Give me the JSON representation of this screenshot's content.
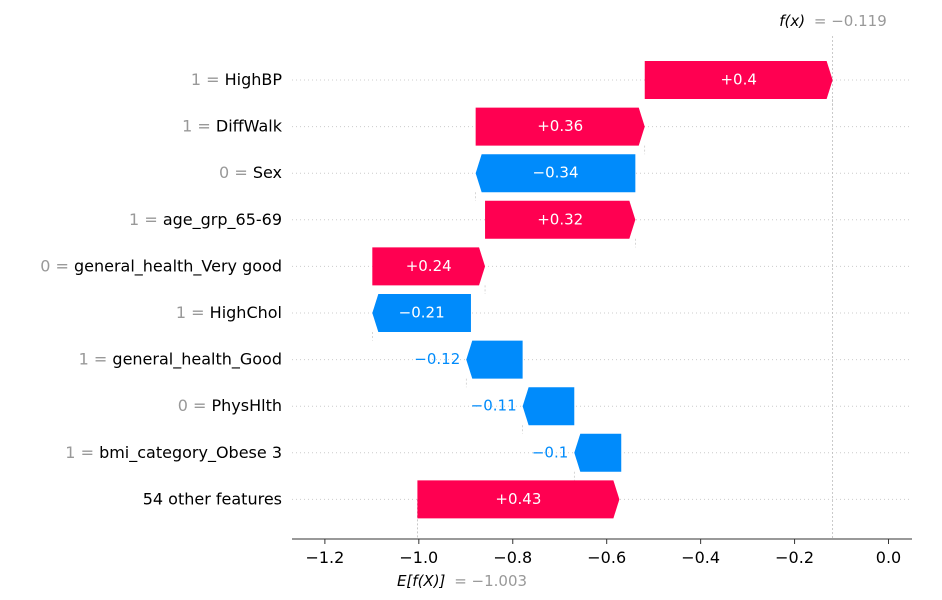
{
  "chart_data": {
    "type": "waterfall",
    "xlim": [
      -1.27,
      0.05
    ],
    "xticks": [
      -1.2,
      -1.0,
      -0.8,
      -0.6,
      -0.4,
      -0.2,
      0.0
    ],
    "xtick_labels": [
      "−1.2",
      "−1.0",
      "−0.8",
      "−0.6",
      "−0.4",
      "−0.2",
      "0.0"
    ],
    "base_value": -1.003,
    "base_label_prefix": "E[f(X)]",
    "base_label_value": "= −1.003",
    "output_value": -0.119,
    "output_label_prefix": "f(x)",
    "output_label_value": "= −0.119",
    "colors": {
      "positive": "#ff0051",
      "negative": "#008bfb",
      "value_text": "#999999"
    },
    "features": [
      {
        "value": "1 =",
        "name": "HighBP",
        "shap": 0.4,
        "label": "+0.4",
        "start": -0.519
      },
      {
        "value": "1 =",
        "name": "DiffWalk",
        "shap": 0.36,
        "label": "+0.36",
        "start": -0.879
      },
      {
        "value": "0 =",
        "name": "Sex",
        "shap": -0.34,
        "label": "−0.34",
        "start": -0.539
      },
      {
        "value": "1 =",
        "name": "age_grp_65-69",
        "shap": 0.32,
        "label": "+0.32",
        "start": -0.859
      },
      {
        "value": "0 =",
        "name": "general_health_Very good",
        "shap": 0.24,
        "label": "+0.24",
        "start": -1.099
      },
      {
        "value": "1 =",
        "name": "HighChol",
        "shap": -0.21,
        "label": "−0.21",
        "start": -0.889
      },
      {
        "value": "1 =",
        "name": "general_health_Good",
        "shap": -0.12,
        "label": "−0.12",
        "start": -0.779
      },
      {
        "value": "0 =",
        "name": "PhysHlth",
        "shap": -0.11,
        "label": "−0.11",
        "start": -0.669
      },
      {
        "value": "1 =",
        "name": "bmi_category_Obese 3",
        "shap": -0.1,
        "label": "−0.1",
        "start": -0.569
      },
      {
        "value": "",
        "name": "54 other features",
        "shap": 0.43,
        "label": "+0.43",
        "start": -1.003
      }
    ]
  }
}
